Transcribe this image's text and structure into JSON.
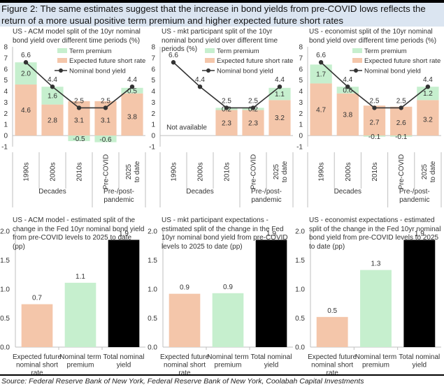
{
  "figure": {
    "title": "Figure 2:  The same estimates suggest that the increase in bond yields from pre-COVID lows reflects the return of a more usual positive term premium and higher expected future short rates",
    "source": "Source: Federal Reserve Bank of New York, Federal Reserve Bank of New York, Coolabah Capital Investments"
  },
  "colors": {
    "term_premium": "#c6efce",
    "short_rate": "#f4c6aa",
    "total": "#000000",
    "line": "#333333",
    "axis": "#bfbfbf"
  },
  "chart_data": [
    {
      "type": "bar",
      "stacked": true,
      "title": "US - ACM model split of the 10yr nominal bond yield over different time periods (%)",
      "categories": [
        "1990s",
        "2000s",
        "2010s",
        "Pre-COVID",
        "2025 to date"
      ],
      "groups": [
        {
          "label": "Decades",
          "span": 3
        },
        {
          "label": "Pre-/post-pandemic",
          "span": 2
        }
      ],
      "series": [
        {
          "name": "Expected future short rate",
          "type": "bar",
          "values": [
            4.6,
            2.8,
            3.1,
            3.1,
            3.8
          ]
        },
        {
          "name": "Term premium",
          "type": "bar",
          "values": [
            2.0,
            1.6,
            -0.5,
            -0.6,
            0.5
          ]
        },
        {
          "name": "Nominal bond yield",
          "type": "line",
          "values": [
            6.6,
            4.4,
            2.5,
            2.5,
            4.4
          ]
        }
      ],
      "legend": [
        "Term premium",
        "Expected future short rate",
        "Nominal bond yield"
      ],
      "legend_position": "top-right",
      "ylim": [
        -1,
        8
      ],
      "yticks": [
        "8",
        "7",
        "6",
        "5",
        "4",
        "3",
        "2",
        "1",
        "0",
        "-1"
      ],
      "note": ""
    },
    {
      "type": "bar",
      "stacked": true,
      "title": "US - mkt participant split of the 10yr nominal bond yield over different time periods (%)",
      "categories": [
        "1990s",
        "2000s",
        "2010s",
        "Pre-COVID",
        "2025 to date"
      ],
      "groups": [
        {
          "label": "Decades",
          "span": 3
        },
        {
          "label": "Pre-/post-pandemic",
          "span": 2
        }
      ],
      "series": [
        {
          "name": "Expected future short rate",
          "type": "bar",
          "values": [
            null,
            null,
            2.3,
            2.3,
            3.2
          ]
        },
        {
          "name": "Term premium",
          "type": "bar",
          "values": [
            null,
            null,
            0.2,
            0.2,
            1.1
          ]
        },
        {
          "name": "Nominal bond yield",
          "type": "line",
          "values": [
            6.6,
            4.4,
            2.5,
            2.5,
            4.4
          ]
        }
      ],
      "legend": [
        "Term premium",
        "Expected future short rate",
        "Nominal bond yield"
      ],
      "legend_position": "top-right",
      "ylim": [
        -1,
        8
      ],
      "yticks": [
        "8",
        "7",
        "6",
        "5",
        "4",
        "3",
        "2",
        "1",
        "0",
        "-1"
      ],
      "note": "Not available"
    },
    {
      "type": "bar",
      "stacked": true,
      "title": "US - economist split of the 10yr nominal bond yield over different time periods (%)",
      "categories": [
        "1990s",
        "2000s",
        "2010s",
        "Pre-COVID",
        "2025 to date"
      ],
      "groups": [
        {
          "label": "Decades",
          "span": 3
        },
        {
          "label": "Pre-/post-pandemic",
          "span": 2
        }
      ],
      "series": [
        {
          "name": "Expected future short rate",
          "type": "bar",
          "values": [
            4.7,
            3.8,
            2.7,
            2.6,
            3.2
          ]
        },
        {
          "name": "Term premium",
          "type": "bar",
          "values": [
            1.7,
            0.6,
            -0.1,
            -0.1,
            1.2
          ]
        },
        {
          "name": "Nominal bond yield",
          "type": "line",
          "values": [
            6.6,
            4.4,
            2.5,
            2.5,
            4.4
          ]
        }
      ],
      "legend": [
        "Term premium",
        "Expected future short rate",
        "Nominal bond yield"
      ],
      "legend_position": "top-right",
      "ylim": [
        -1,
        8
      ],
      "yticks": [
        "8",
        "7",
        "6",
        "5",
        "4",
        "3",
        "2",
        "1",
        "0",
        "-1"
      ],
      "note": ""
    },
    {
      "type": "bar",
      "title": "US - ACM model - estimated split of the change in the Fed 10yr nominal bond yield from pre-COVID levels to 2025 to date (pp)",
      "categories": [
        "Expected future nominal short rate",
        "Nominal term premium",
        "Total nominal yield"
      ],
      "values": [
        0.74,
        1.11,
        1.85
      ],
      "labels": [
        "0.7",
        "1.1",
        "1.9"
      ],
      "colors_key": [
        "short_rate",
        "term_premium",
        "total"
      ],
      "ylim": [
        0,
        2
      ],
      "yticks": [
        "2.0",
        "1.5",
        "1.0",
        "0.5",
        "0.0"
      ]
    },
    {
      "type": "bar",
      "title": "US - mkt participant expectations - estimated split of the change in the Fed 10yr nominal bond yield from pre-COVID levels to 2025 to date (pp)",
      "categories": [
        "Expected future nominal short rate",
        "Nominal term premium",
        "Total nominal yield"
      ],
      "values": [
        0.92,
        0.93,
        1.85
      ],
      "labels": [
        "0.9",
        "0.9",
        "1.9"
      ],
      "colors_key": [
        "short_rate",
        "term_premium",
        "total"
      ],
      "ylim": [
        0,
        2
      ],
      "yticks": [
        "2.0",
        "1.5",
        "1.0",
        "0.5",
        "0.0"
      ]
    },
    {
      "type": "bar",
      "title": "US - economist expectations - estimated split of the change in the Fed 10yr nominal bond yield from pre-COVID levels to 2025 to date (pp)",
      "categories": [
        "Expected future nominal short rate",
        "Nominal term premium",
        "Total nominal yield"
      ],
      "values": [
        0.52,
        1.33,
        1.85
      ],
      "labels": [
        "0.5",
        "1.3",
        "1.9"
      ],
      "colors_key": [
        "short_rate",
        "term_premium",
        "total"
      ],
      "ylim": [
        0,
        2
      ],
      "yticks": [
        "2.0",
        "1.5",
        "1.0",
        "0.5",
        "0.0"
      ]
    }
  ]
}
